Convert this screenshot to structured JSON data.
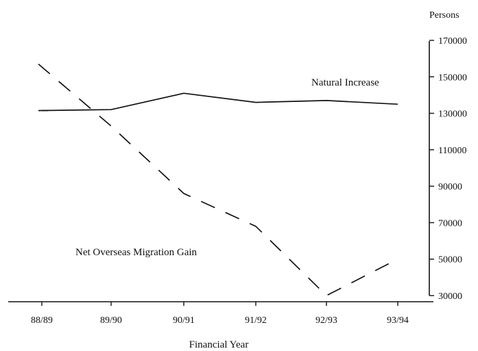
{
  "chart_data": {
    "type": "line",
    "title": "",
    "xlabel": "Financial Year",
    "ylabel": "Persons",
    "categories": [
      "88/89",
      "89/90",
      "90/91",
      "91/92",
      "92/93",
      "93/94"
    ],
    "ylim": [
      30000,
      170000
    ],
    "yticks": [
      30000,
      50000,
      70000,
      90000,
      110000,
      130000,
      150000,
      170000
    ],
    "yaxis_position": "right",
    "grid": false,
    "legend": "none (series labelled directly on plot)",
    "series": [
      {
        "name": "Natural Increase",
        "style": "solid",
        "color": "#111111",
        "values": [
          131500,
          132000,
          141000,
          136000,
          137000,
          135000
        ]
      },
      {
        "name": "Net Overseas Migration Gain",
        "style": "dashed",
        "color": "#111111",
        "values": [
          157000,
          123000,
          86000,
          68000,
          30000,
          50000
        ]
      }
    ]
  }
}
